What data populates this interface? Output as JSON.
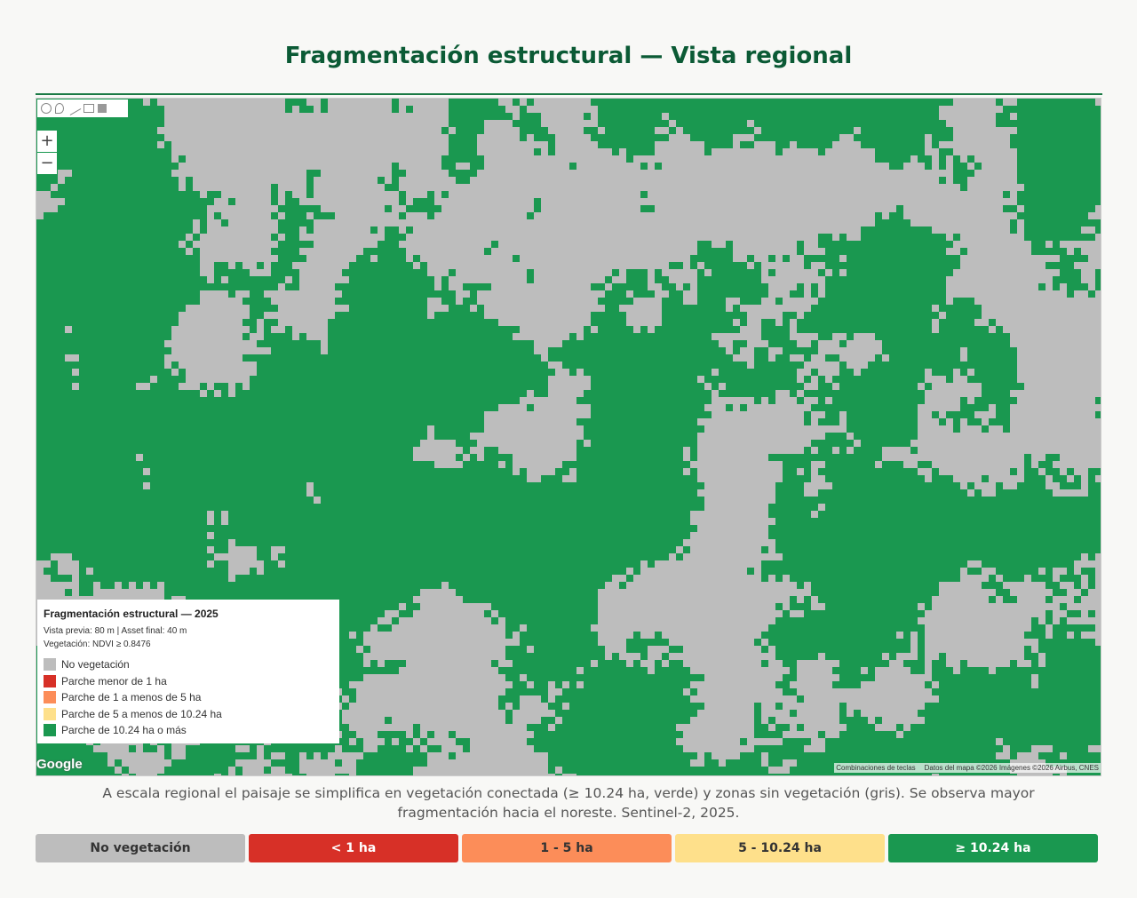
{
  "header": {
    "title": "Fragmentación estructural — Vista regional"
  },
  "map": {
    "zoom_in": "+",
    "zoom_out": "−",
    "google": "Google",
    "shortcuts": "Combinaciones de teclas",
    "attribution": "Datos del mapa ©2026 Imágenes ©2026 Airbus, CNES",
    "legend": {
      "title": "Fragmentación estructural — 2025",
      "subtitle": "Vista previa: 80 m | Asset final: 40 m",
      "threshold": "Vegetación: NDVI ≥ 0.8476",
      "items": [
        {
          "label": "No vegetación",
          "color": "#bdbdbd"
        },
        {
          "label": "Parche menor de 1 ha",
          "color": "#d73027"
        },
        {
          "label": "Parche de 1 a menos de 5 ha",
          "color": "#fc8d59"
        },
        {
          "label": "Parche de 5 a menos de 10.24 ha",
          "color": "#fee08b"
        },
        {
          "label": "Parche de 10.24 ha o más",
          "color": "#1a9850"
        }
      ]
    }
  },
  "caption": "A escala regional el paisaje se simplifica en vegetación conectada (≥ 10.24 ha, verde) y zonas sin vegetación (gris). Se observa mayor fragmentación hacia el noreste. Sentinel-2, 2025.",
  "chips": [
    {
      "label": "No vegetación",
      "color": "#bdbdbd",
      "text": "#333"
    },
    {
      "label": "< 1 ha",
      "color": "#d73027",
      "text": "#fff"
    },
    {
      "label": "1 - 5 ha",
      "color": "#fc8d59",
      "text": "#333"
    },
    {
      "label": "5 - 10.24 ha",
      "color": "#fee08b",
      "text": "#333"
    },
    {
      "label": "≥ 10.24 ha",
      "color": "#1a9850",
      "text": "#fff"
    }
  ]
}
